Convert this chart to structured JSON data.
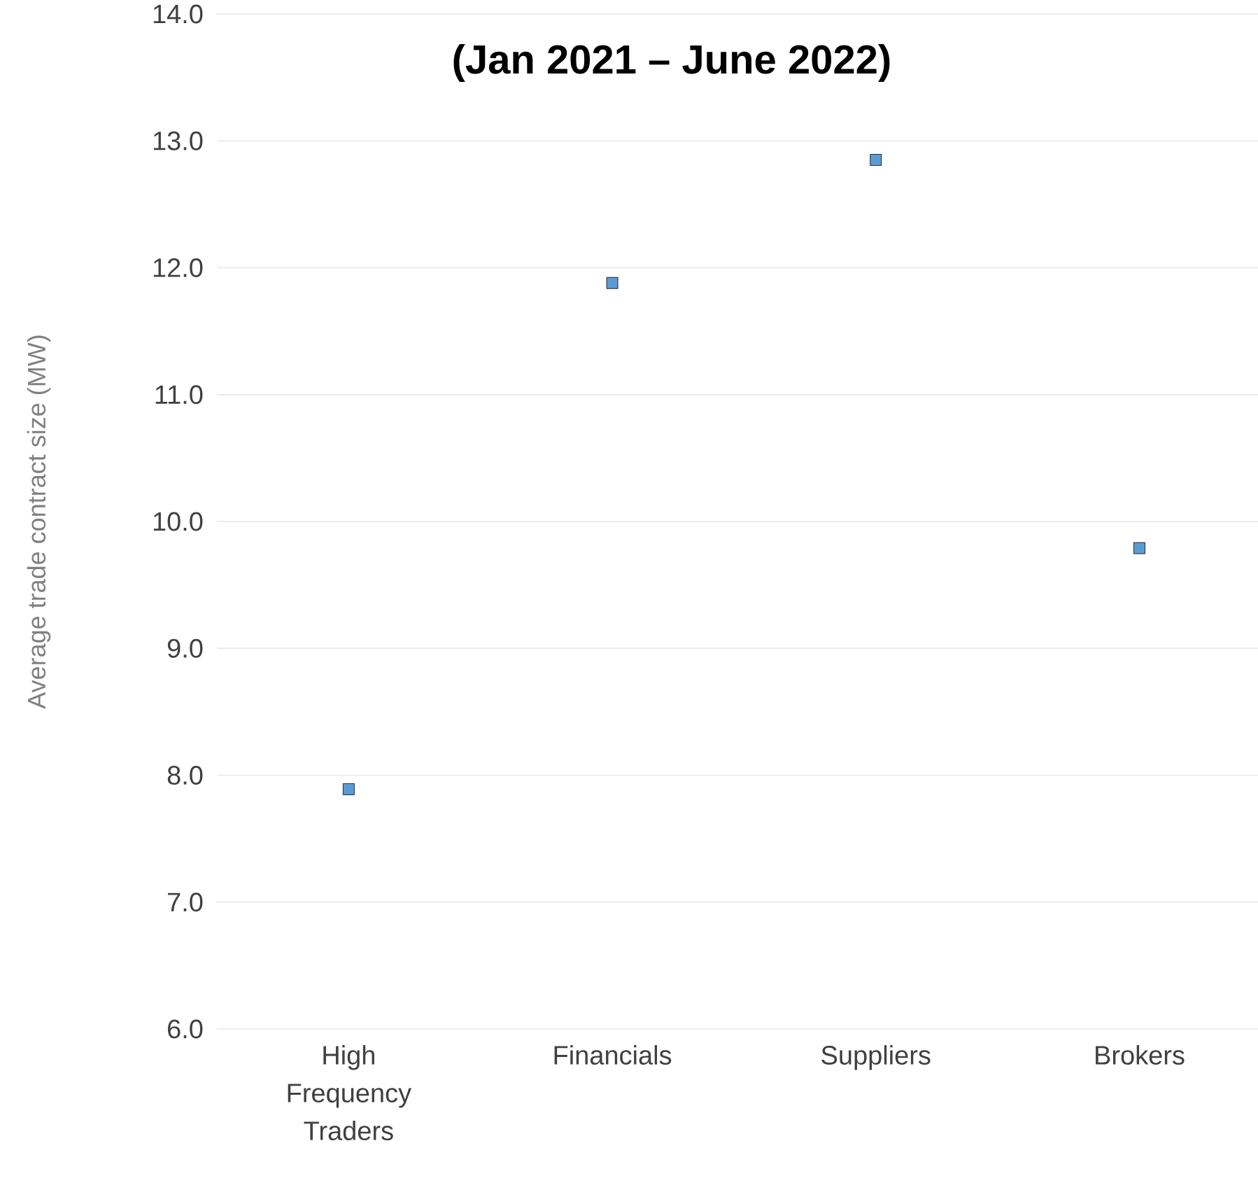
{
  "chart_data": {
    "type": "scatter",
    "title": "(Jan 2021 – June 2022)",
    "ylabel": "Average trade contract size (MW)",
    "categories": [
      "High Frequency Traders",
      "Financials",
      "Suppliers",
      "Brokers"
    ],
    "values": [
      7.89,
      11.88,
      12.85,
      9.79
    ],
    "color": "#5b9bd5",
    "ylim": [
      6,
      14
    ],
    "yticks": [
      {
        "value": 6,
        "label": "6.0"
      },
      {
        "value": 7,
        "label": "7.0"
      },
      {
        "value": 8,
        "label": "8.0"
      },
      {
        "value": 9,
        "label": "9.0"
      },
      {
        "value": 10,
        "label": "10.0"
      },
      {
        "value": 11,
        "label": "11.0"
      },
      {
        "value": 12,
        "label": "12.0"
      },
      {
        "value": 13,
        "label": "13.0"
      },
      {
        "value": 14,
        "label": "14.0"
      }
    ],
    "grid": "y",
    "marker": "square"
  }
}
